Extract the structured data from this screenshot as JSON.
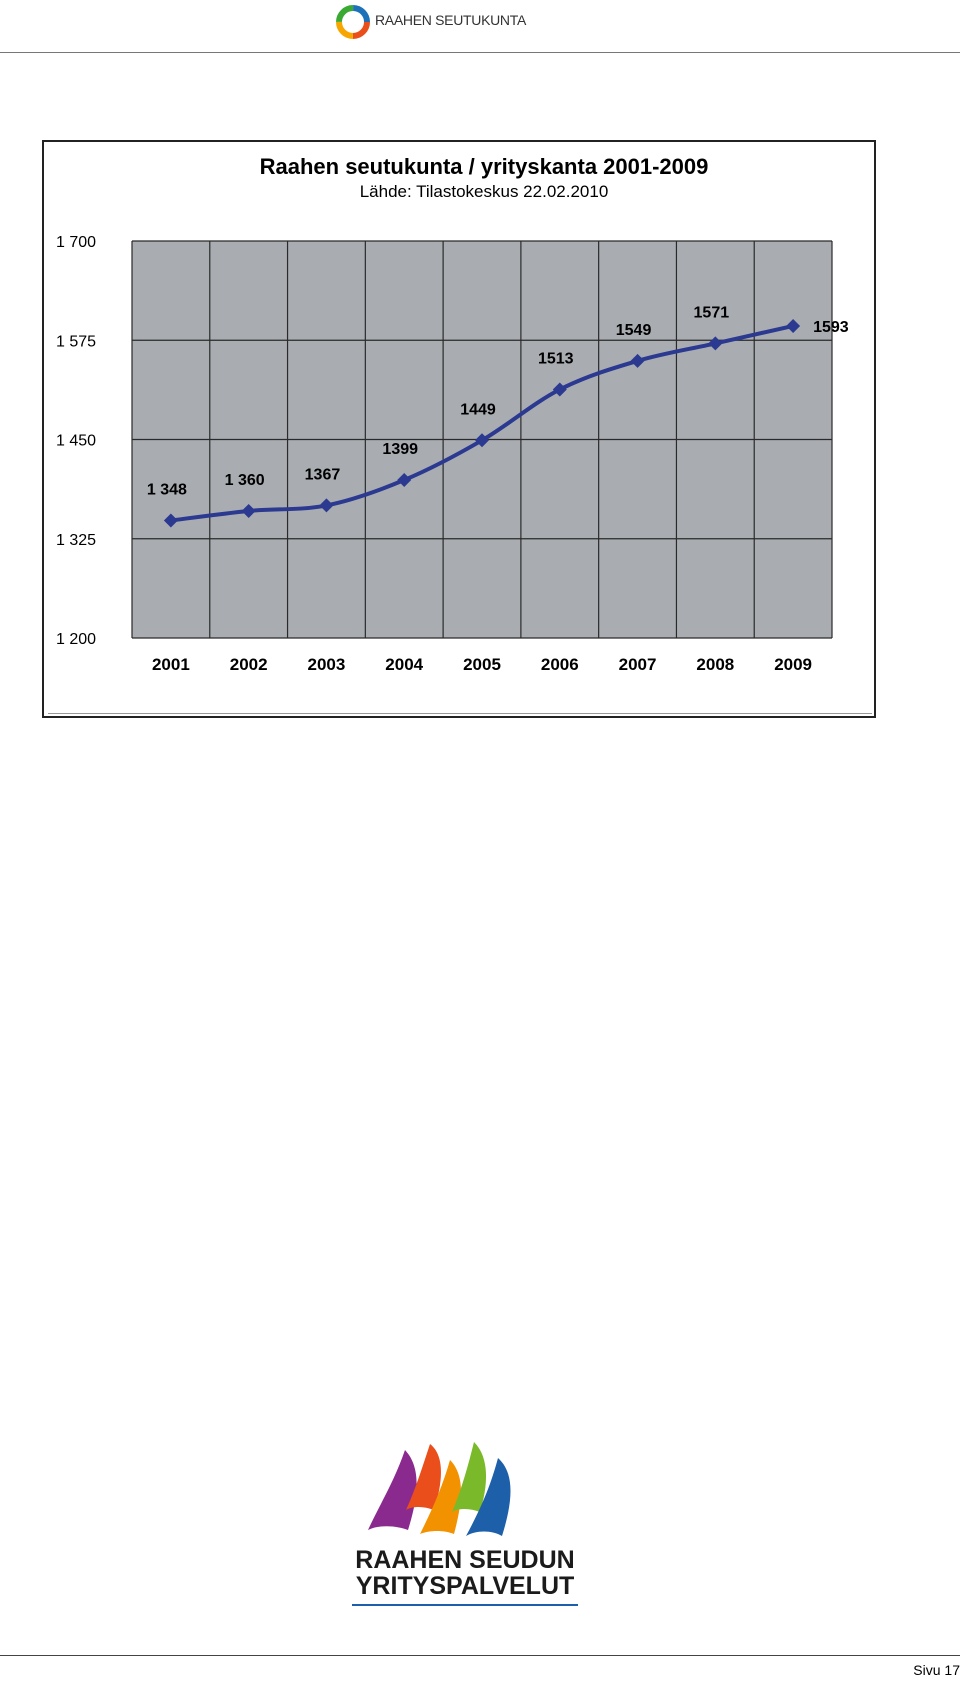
{
  "header": {
    "brand": "RAAHEN SEUTUKUNTA"
  },
  "footer": {
    "logo_line1": "RAAHEN SEUDUN",
    "logo_line2": "YRITYSPALVELUT",
    "page_label": "Sivu 17"
  },
  "colors": {
    "line": "#2b3990",
    "plot_bg": "#a9adb2",
    "grid": "#2a2a2a"
  },
  "chart_data": {
    "type": "line",
    "title": "Raahen seutukunta / yrityskanta 2001-2009",
    "subtitle": "Lähde: Tilastokeskus 22.02.2010",
    "categories": [
      "2001",
      "2002",
      "2003",
      "2004",
      "2005",
      "2006",
      "2007",
      "2008",
      "2009"
    ],
    "series": [
      {
        "values": [
          1348,
          1360,
          1367,
          1399,
          1449,
          1513,
          1549,
          1571,
          1593
        ],
        "labels": [
          "1 348",
          "1 360",
          "1367",
          "1399",
          "1449",
          "1513",
          "1549",
          "1571",
          "1593"
        ]
      }
    ],
    "ylim": [
      1200,
      1700
    ],
    "yticks": [
      1200,
      1325,
      1450,
      1575,
      1700
    ],
    "ytick_labels": [
      "1 200",
      "1 325",
      "1 450",
      "1 575",
      "1 700"
    ],
    "grid": true,
    "legend": "none"
  }
}
